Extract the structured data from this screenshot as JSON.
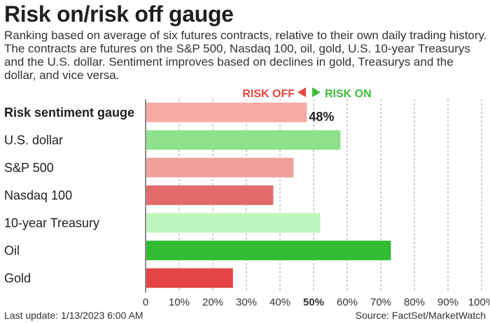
{
  "header": {
    "title": "Risk on/risk off gauge",
    "subtitle": "Ranking based on average of six futures contracts, relative to their own daily trading history. The contracts are futures on the S&P 500, Nasdaq 100, oil, gold, U.S. 10-year Treasurys and the U.S. dollar. Sentiment improves based on declines in gold, Treasurys and the dollar, and vice versa."
  },
  "legend": {
    "risk_off": "RISK OFF",
    "risk_on": "RISK ON",
    "risk_off_color": "#e8473f",
    "risk_on_color": "#3dbb3d"
  },
  "footer": {
    "last_update": "Last update: 1/13/2023 6:00 AM",
    "source": "Source: FactSet/MarketWatch"
  },
  "chart_data": {
    "type": "bar",
    "orientation": "horizontal",
    "categories": [
      "Risk sentiment gauge",
      "U.S. dollar",
      "S&P 500",
      "Nasdaq 100",
      "10-year Treasury",
      "Oil",
      "Gold"
    ],
    "values": [
      48,
      58,
      44,
      38,
      52,
      73,
      26
    ],
    "colors": [
      "#f7aaa6",
      "#8ee28e",
      "#f2a09b",
      "#e36a6a",
      "#bff7bf",
      "#33bb33",
      "#e54445"
    ],
    "data_labels": [
      "48%",
      "",
      "",
      "",
      "",
      "",
      ""
    ],
    "xlim": [
      0,
      100
    ],
    "xticks": [
      "0",
      "10%",
      "20%",
      "30%",
      "40%",
      "50%",
      "60%",
      "70%",
      "80%",
      "90%",
      "100%"
    ],
    "midline": 50,
    "grid": "vertical dashed"
  }
}
